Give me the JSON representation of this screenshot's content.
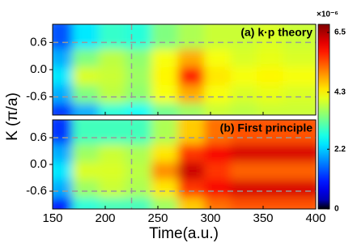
{
  "chart_data": {
    "type": "heatmap",
    "colormap": "jet",
    "xlabel": "Time(a.u.)",
    "ylabel": "K (π/a)",
    "xlim": [
      150,
      400
    ],
    "xticks": [
      150,
      200,
      250,
      300,
      350,
      400
    ],
    "ylim": [
      -1,
      1
    ],
    "yticks": [
      0.6,
      {
        "value": 0,
        "label": "0.0"
      },
      -0.6
    ],
    "x": [
      162.5,
      187.5,
      212.5,
      237.5,
      262.5,
      287.5,
      312.5,
      337.5,
      362.5,
      387.5
    ],
    "y": [
      -0.8,
      -0.4,
      0,
      0.4,
      0.8
    ],
    "hlines": [
      0.6,
      -0.6
    ],
    "vline": 225,
    "panels": [
      {
        "title": "(a) k·p theory",
        "z": [
          [
            1.2,
            2.0,
            2.8,
            2.6,
            3.3,
            3.6,
            3.9,
            3.8,
            3.9,
            3.9
          ],
          [
            2.0,
            3.4,
            3.8,
            3.5,
            4.2,
            4.8,
            4.2,
            4.0,
            4.1,
            4.0
          ],
          [
            2.4,
            4.0,
            3.9,
            3.6,
            4.3,
            5.8,
            4.4,
            4.2,
            4.3,
            4.2
          ],
          [
            2.0,
            3.4,
            3.8,
            3.5,
            4.2,
            4.8,
            4.2,
            4.0,
            4.1,
            4.0
          ],
          [
            1.4,
            2.4,
            2.9,
            2.8,
            3.4,
            3.7,
            3.9,
            3.9,
            4.0,
            3.9
          ]
        ]
      },
      {
        "title": "(b) First principle",
        "z": [
          [
            0.9,
            2.8,
            3.0,
            3.0,
            3.6,
            4.6,
            5.2,
            5.4,
            5.4,
            5.4
          ],
          [
            2.0,
            3.6,
            3.9,
            3.7,
            4.4,
            5.6,
            6.0,
            6.2,
            6.2,
            6.2
          ],
          [
            2.4,
            4.0,
            4.0,
            3.8,
            5.0,
            6.3,
            5.6,
            5.3,
            5.3,
            5.3
          ],
          [
            2.0,
            3.6,
            3.9,
            3.7,
            4.4,
            5.6,
            6.0,
            6.2,
            6.2,
            6.2
          ],
          [
            1.2,
            3.0,
            3.0,
            3.0,
            3.7,
            4.6,
            5.2,
            5.4,
            5.4,
            5.4
          ]
        ]
      }
    ],
    "colorbar": {
      "lim": [
        0,
        6.8
      ],
      "ticks": [
        0,
        2.2,
        4.3,
        6.5
      ],
      "label": "×10⁻⁶"
    }
  }
}
